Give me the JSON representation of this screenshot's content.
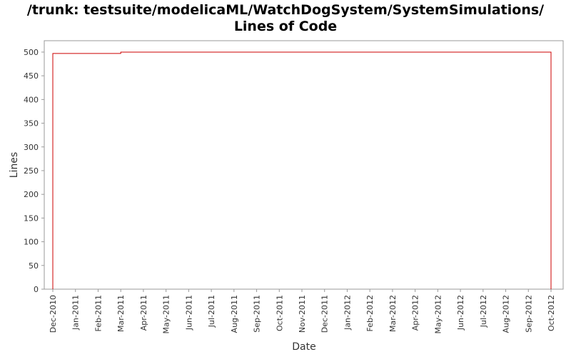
{
  "chart_data": {
    "type": "line",
    "title": [
      "/trunk: testsuite/modelicaML/WatchDogSystem/SystemSimulations/",
      "Lines of Code"
    ],
    "x_label": "Date",
    "y_label": "Lines",
    "x": [
      "Dec-2010",
      "Dec-2010",
      "Mar-2011",
      "Mar-2011",
      "Oct-2012",
      "Oct-2012"
    ],
    "series": [
      {
        "name": "Lines",
        "color": "#cc0000",
        "values": [
          0,
          497,
          497,
          500,
          500,
          0
        ]
      }
    ],
    "xticks": [
      "Dec-2010",
      "Jan-2011",
      "Feb-2011",
      "Mar-2011",
      "Apr-2011",
      "May-2011",
      "Jun-2011",
      "Jul-2011",
      "Aug-2011",
      "Sep-2011",
      "Oct-2011",
      "Nov-2011",
      "Dec-2011",
      "Jan-2012",
      "Feb-2012",
      "Mar-2012",
      "Apr-2012",
      "May-2012",
      "Jun-2012",
      "Jul-2012",
      "Aug-2012",
      "Sep-2012",
      "Oct-2012"
    ],
    "ylim": [
      0,
      524
    ],
    "yticks": [
      0,
      50,
      100,
      150,
      200,
      250,
      300,
      350,
      400,
      450,
      500
    ],
    "grid": false
  }
}
